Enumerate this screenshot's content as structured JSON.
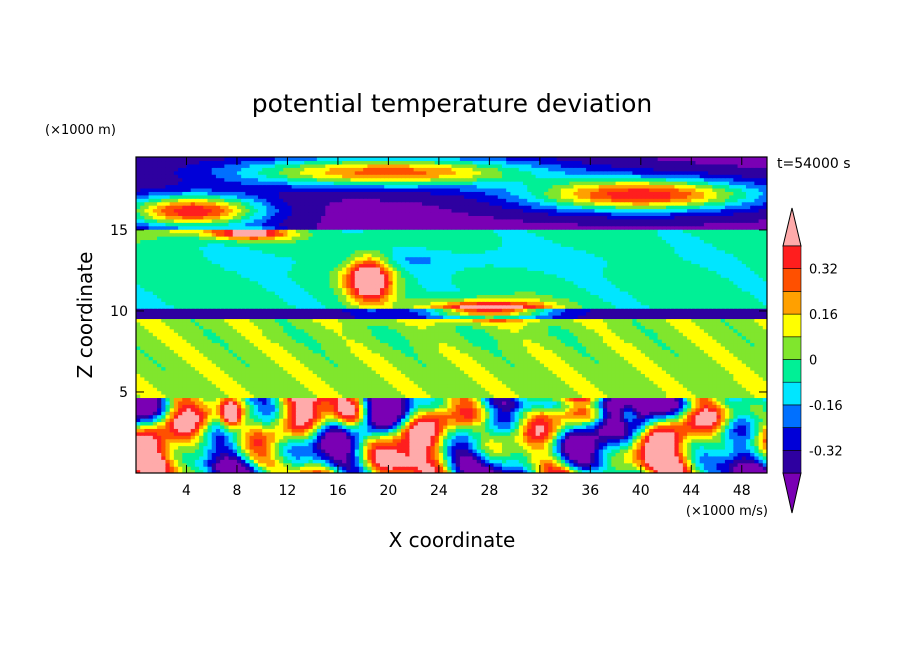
{
  "chart_data": {
    "type": "heatmap",
    "title": "potential temperature deviation",
    "xlabel": "X coordinate",
    "ylabel": "Z coordinate",
    "x_unit": "(×1000 m/s)",
    "y_unit": "(×1000 m)",
    "time_label": "t=54000 s",
    "xlim": [
      0,
      50
    ],
    "ylim": [
      0,
      19.5
    ],
    "x_ticks": [
      4,
      8,
      12,
      16,
      20,
      24,
      28,
      32,
      36,
      40,
      44,
      48
    ],
    "y_ticks": [
      5,
      10,
      15
    ],
    "colorbar": {
      "levels": [
        -0.4,
        -0.32,
        -0.24,
        -0.16,
        -0.08,
        0,
        0.08,
        0.16,
        0.24,
        0.32,
        0.4
      ],
      "tick_labels": [
        "-0.32",
        "-0.16",
        "0",
        "0.16",
        "0.32"
      ],
      "tick_values": [
        -0.32,
        -0.16,
        0,
        0.16,
        0.32
      ],
      "colors": [
        "#7a00b4",
        "#2e00a0",
        "#0000d8",
        "#0070ff",
        "#00e6ff",
        "#00f096",
        "#80e62d",
        "#ffff00",
        "#ffa000",
        "#ff5000",
        "#ff1e1e",
        "#ffaaaa"
      ],
      "extend": "both"
    },
    "bands": [
      {
        "z": [
          0,
          4.6
        ],
        "pattern": "turbulent mixed field ranging -0.4 to 0.4"
      },
      {
        "z": [
          4.6,
          9.5
        ],
        "value": 0.05
      },
      {
        "z": [
          9.5,
          10.2
        ],
        "value": -0.35
      },
      {
        "z": [
          10.2,
          15
        ],
        "value": -0.05
      },
      {
        "z": [
          15,
          19.5
        ],
        "value": -0.4
      }
    ],
    "warm_anomalies": [
      {
        "x": [
          20,
          32
        ],
        "z": [
          9.5,
          11
        ]
      },
      {
        "x": [
          12,
          19
        ],
        "z": [
          10.5,
          13.5
        ]
      },
      {
        "x": [
          0,
          12
        ],
        "z": [
          14.5,
          17.5
        ]
      },
      {
        "x": [
          6,
          38
        ],
        "z": [
          17.5,
          19.5
        ]
      },
      {
        "x": [
          26,
          48
        ],
        "z": [
          15,
          18
        ]
      }
    ]
  }
}
